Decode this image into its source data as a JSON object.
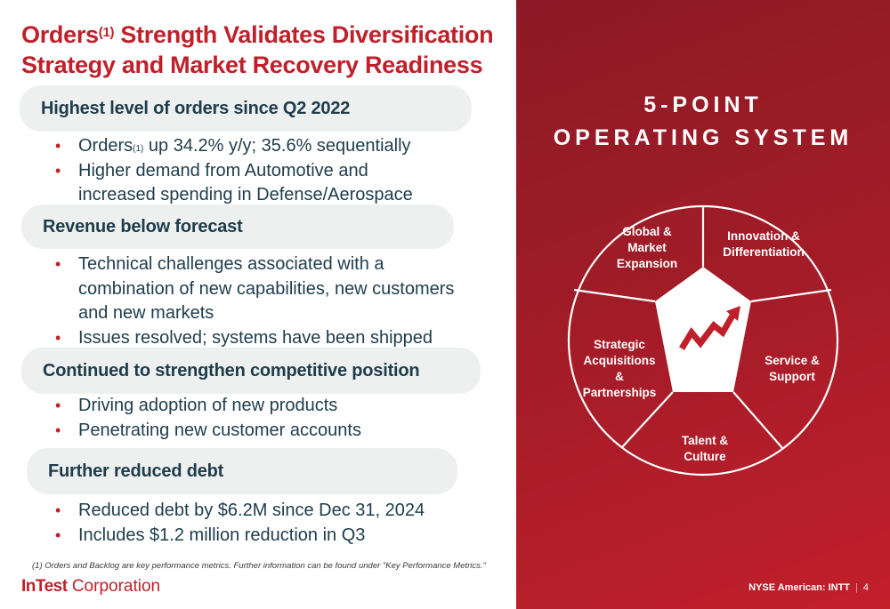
{
  "title": {
    "main": "Orders",
    "sup": "(1)",
    "rest_line1": " Strength Validates Diversification",
    "line2": "Strategy and Market Recovery Readiness"
  },
  "sections": [
    {
      "heading": "Highest level of orders since Q2 2022",
      "bullets": [
        {
          "pre": "Orders",
          "sup": "(1)",
          "post": " up 34.2% y/y; 35.6% sequentially"
        },
        {
          "line1": "Higher demand from Automotive and",
          "line2": "increased spending in Defense/Aerospace"
        }
      ]
    },
    {
      "heading": "Revenue below forecast",
      "bullets": [
        {
          "line1": "Technical challenges associated with a",
          "line2": "combination of new capabilities, new customers",
          "line3": "and new markets"
        },
        {
          "text": "Issues resolved; systems have been shipped"
        }
      ]
    },
    {
      "heading": "Continued to strengthen competitive position",
      "bullets": [
        {
          "text": "Driving adoption of new products"
        },
        {
          "text": "Penetrating new customer accounts"
        }
      ]
    },
    {
      "heading": "Further reduced debt",
      "bullets": [
        {
          "text": "Reduced debt by $6.2M since Dec 31, 2024"
        },
        {
          "text": "Includes $1.2 million reduction in Q3"
        }
      ]
    }
  ],
  "bullet_glyph": "•",
  "footnote": "(1) Orders and Backlog are key performance metrics. Further information can be found under \"Key Performance Metrics.\"",
  "logo": {
    "bold": "InTest",
    "rest": " Corporation"
  },
  "system": {
    "heading_line1": "5-POINT",
    "heading_line2": "OPERATING SYSTEM",
    "segments": [
      {
        "lines": [
          "Global &",
          "Market",
          "Expansion"
        ]
      },
      {
        "lines": [
          "Innovation &",
          "Differentiation"
        ]
      },
      {
        "lines": [
          "Service &",
          "Support"
        ]
      },
      {
        "lines": [
          "Talent &",
          "Culture"
        ]
      },
      {
        "lines": [
          "Strategic",
          "Acquisitions",
          "&",
          "Partnerships"
        ]
      }
    ],
    "center_icon": "trend-up-arrow-icon"
  },
  "ticker": "NYSE American: INTT",
  "page_number": "4",
  "colors": {
    "accent": "#c0202a",
    "text": "#1e3c4c",
    "pill": "#eef0f0"
  }
}
